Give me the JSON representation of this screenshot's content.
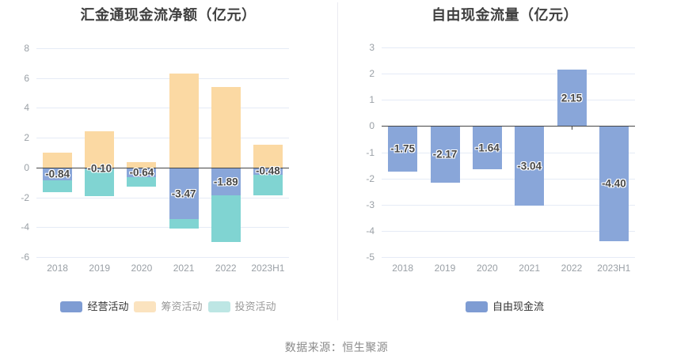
{
  "source_note": "数据来源：恒生聚源",
  "chart_data": [
    {
      "type": "bar",
      "stacked": true,
      "title": "汇金通现金流净额（亿元）",
      "xlabel": "",
      "ylabel": "",
      "grid": true,
      "legend_position": "bottom",
      "categories": [
        "2018",
        "2019",
        "2020",
        "2021",
        "2022",
        "2023H1"
      ],
      "y_axis": {
        "min": -6,
        "max": 8,
        "step": 2,
        "ticks": [
          "8",
          "6",
          "4",
          "2",
          "0",
          "-2",
          "-4",
          "-6"
        ]
      },
      "series": [
        {
          "name": "经营活动",
          "bar_color": "#89a6d9",
          "legend_color": "#7e9cd3",
          "legend_text_color": "#333333",
          "show_labels": true,
          "values": [
            -0.84,
            -0.1,
            -0.64,
            -3.47,
            -1.89,
            -0.48
          ],
          "labels": [
            "-0.84",
            "-0.10",
            "-0.64",
            "-3.47",
            "-1.89",
            "-0.48"
          ]
        },
        {
          "name": "筹资活动",
          "bar_color": "#fbd9a3",
          "legend_color": "#fbe3bf",
          "legend_text_color": "#999999",
          "show_labels": false,
          "values": [
            0.98,
            2.43,
            0.35,
            6.28,
            5.38,
            1.52
          ]
        },
        {
          "name": "投资活动",
          "bar_color": "#80d4d2",
          "legend_color": "#bde6e4",
          "legend_text_color": "#999999",
          "show_labels": false,
          "values": [
            -0.79,
            -1.8,
            -0.66,
            -0.63,
            -3.1,
            -1.37
          ]
        }
      ]
    },
    {
      "type": "bar",
      "stacked": false,
      "title": "自由现金流量（亿元）",
      "xlabel": "",
      "ylabel": "",
      "grid": true,
      "legend_position": "bottom",
      "categories": [
        "2018",
        "2019",
        "2020",
        "2021",
        "2022",
        "2023H1"
      ],
      "y_axis": {
        "min": -5,
        "max": 3,
        "step": 1,
        "ticks": [
          "3",
          "2",
          "1",
          "0",
          "-1",
          "-2",
          "-3",
          "-4",
          "-5"
        ]
      },
      "series": [
        {
          "name": "自由现金流",
          "bar_color": "#89a6d9",
          "legend_color": "#7e9cd3",
          "legend_text_color": "#333333",
          "show_labels": true,
          "values": [
            -1.75,
            -2.17,
            -1.64,
            -3.04,
            2.15,
            -4.4
          ],
          "labels": [
            "-1.75",
            "-2.17",
            "-1.64",
            "-3.04",
            "2.15",
            "-4.40"
          ]
        }
      ]
    }
  ]
}
